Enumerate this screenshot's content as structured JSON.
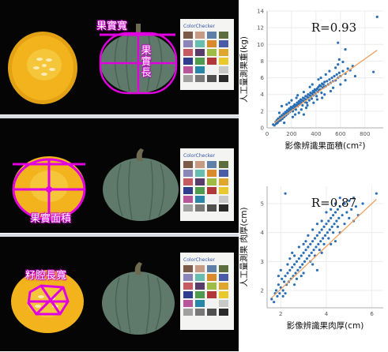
{
  "annotations": {
    "fruit_width": "果實寬",
    "fruit_length_chars": [
      "果",
      "實",
      "長"
    ],
    "fruit_area": "果實面積",
    "cavity": "籽腔長寬"
  },
  "colors": {
    "magenta": "#e000e0",
    "point": "#2a6fb4",
    "fit": "#f0a060",
    "flesh": "#f2b31c",
    "rind": "#5f7a6a"
  },
  "chart_data": [
    {
      "type": "scatter",
      "title": "",
      "ylabel": "人工量測果重(kg)",
      "xlabel": "影像辨識果面積(cm²)",
      "annotation": "R=0.93",
      "xlim": [
        0,
        950
      ],
      "ylim": [
        0,
        14
      ],
      "xticks": [
        0,
        200,
        400,
        600,
        800
      ],
      "yticks": [
        0,
        2,
        4,
        6,
        8,
        10,
        12,
        14
      ],
      "trend": [
        [
          60,
          0.6
        ],
        [
          900,
          9.3
        ]
      ],
      "points": [
        [
          50,
          0.4
        ],
        [
          60,
          0.3
        ],
        [
          70,
          0.7
        ],
        [
          75,
          0.5
        ],
        [
          80,
          0.9
        ],
        [
          85,
          0.6
        ],
        [
          90,
          1.1
        ],
        [
          95,
          0.8
        ],
        [
          100,
          1.0
        ],
        [
          105,
          1.3
        ],
        [
          110,
          0.9
        ],
        [
          115,
          1.2
        ],
        [
          120,
          1.5
        ],
        [
          125,
          1.1
        ],
        [
          130,
          1.4
        ],
        [
          135,
          1.7
        ],
        [
          140,
          1.3
        ],
        [
          145,
          1.6
        ],
        [
          150,
          1.9
        ],
        [
          155,
          1.5
        ],
        [
          160,
          1.8
        ],
        [
          165,
          2.1
        ],
        [
          170,
          1.7
        ],
        [
          175,
          2.0
        ],
        [
          180,
          2.3
        ],
        [
          185,
          1.9
        ],
        [
          190,
          2.2
        ],
        [
          195,
          2.5
        ],
        [
          200,
          2.1
        ],
        [
          205,
          2.4
        ],
        [
          210,
          2.0
        ],
        [
          215,
          2.6
        ],
        [
          220,
          2.3
        ],
        [
          225,
          2.8
        ],
        [
          230,
          2.5
        ],
        [
          235,
          2.2
        ],
        [
          240,
          2.7
        ],
        [
          245,
          3.0
        ],
        [
          250,
          2.6
        ],
        [
          255,
          2.9
        ],
        [
          260,
          3.2
        ],
        [
          265,
          2.8
        ],
        [
          270,
          3.1
        ],
        [
          275,
          3.4
        ],
        [
          280,
          3.0
        ],
        [
          285,
          3.3
        ],
        [
          290,
          2.7
        ],
        [
          295,
          3.6
        ],
        [
          300,
          3.2
        ],
        [
          305,
          3.5
        ],
        [
          310,
          3.1
        ],
        [
          315,
          3.8
        ],
        [
          320,
          3.4
        ],
        [
          325,
          3.0
        ],
        [
          330,
          3.7
        ],
        [
          335,
          4.0
        ],
        [
          340,
          3.6
        ],
        [
          345,
          3.3
        ],
        [
          350,
          3.9
        ],
        [
          355,
          4.2
        ],
        [
          360,
          3.8
        ],
        [
          365,
          3.5
        ],
        [
          370,
          4.1
        ],
        [
          375,
          4.4
        ],
        [
          380,
          3.9
        ],
        [
          385,
          4.3
        ],
        [
          390,
          4.6
        ],
        [
          395,
          4.1
        ],
        [
          400,
          4.5
        ],
        [
          405,
          3.8
        ],
        [
          410,
          4.7
        ],
        [
          415,
          4.3
        ],
        [
          420,
          4.9
        ],
        [
          425,
          4.5
        ],
        [
          430,
          5.1
        ],
        [
          435,
          4.6
        ],
        [
          440,
          5.0
        ],
        [
          445,
          4.2
        ],
        [
          450,
          5.3
        ],
        [
          455,
          4.8
        ],
        [
          460,
          5.2
        ],
        [
          465,
          4.9
        ],
        [
          470,
          5.5
        ],
        [
          480,
          5.0
        ],
        [
          490,
          5.6
        ],
        [
          500,
          5.2
        ],
        [
          510,
          5.8
        ],
        [
          520,
          5.4
        ],
        [
          530,
          6.0
        ],
        [
          540,
          5.6
        ],
        [
          550,
          6.2
        ],
        [
          560,
          5.7
        ],
        [
          570,
          6.4
        ],
        [
          580,
          6.0
        ],
        [
          590,
          6.6
        ],
        [
          600,
          6.2
        ],
        [
          620,
          6.8
        ],
        [
          640,
          6.5
        ],
        [
          660,
          7.1
        ],
        [
          700,
          7.4
        ],
        [
          120,
          2.6
        ],
        [
          140,
          0.6
        ],
        [
          180,
          3.0
        ],
        [
          210,
          1.3
        ],
        [
          240,
          3.6
        ],
        [
          260,
          1.8
        ],
        [
          300,
          4.3
        ],
        [
          320,
          2.4
        ],
        [
          350,
          4.9
        ],
        [
          380,
          3.0
        ],
        [
          420,
          5.8
        ],
        [
          450,
          3.6
        ],
        [
          480,
          6.4
        ],
        [
          520,
          4.4
        ],
        [
          560,
          7.2
        ],
        [
          600,
          5.2
        ],
        [
          100,
          1.8
        ],
        [
          160,
          2.8
        ],
        [
          230,
          1.6
        ],
        [
          280,
          2.2
        ],
        [
          330,
          2.7
        ],
        [
          370,
          5.2
        ],
        [
          410,
          3.4
        ],
        [
          440,
          6.0
        ],
        [
          470,
          4.0
        ],
        [
          510,
          6.8
        ],
        [
          540,
          4.8
        ],
        [
          580,
          7.6
        ],
        [
          200,
          3.3
        ],
        [
          250,
          3.9
        ],
        [
          620,
          7.9
        ],
        [
          640,
          5.7
        ],
        [
          680,
          6.9
        ],
        [
          720,
          6.2
        ],
        [
          870,
          6.7
        ],
        [
          900,
          13.3
        ],
        [
          580,
          10.2
        ],
        [
          640,
          9.4
        ],
        [
          590,
          8.2
        ],
        [
          300,
          1.6
        ]
      ]
    },
    {
      "type": "scatter",
      "title": "",
      "ylabel": "人工量測果 肉厚(cm)",
      "xlabel": "影像辨識果肉厚(cm)",
      "annotation": "R=0.87",
      "xlim": [
        1.4,
        6.5
      ],
      "ylim": [
        1.4,
        5.6
      ],
      "xticks": [
        2,
        4,
        6
      ],
      "yticks": [
        2,
        3,
        4,
        5
      ],
      "trend": [
        [
          1.6,
          1.75
        ],
        [
          6.2,
          5.15
        ]
      ],
      "points": [
        [
          1.6,
          1.7
        ],
        [
          1.7,
          1.6
        ],
        [
          1.75,
          1.9
        ],
        [
          1.8,
          2.0
        ],
        [
          1.85,
          1.8
        ],
        [
          1.9,
          2.2
        ],
        [
          1.95,
          1.9
        ],
        [
          2.0,
          2.1
        ],
        [
          2.05,
          2.4
        ],
        [
          2.1,
          2.0
        ],
        [
          2.15,
          2.3
        ],
        [
          2.2,
          2.5
        ],
        [
          2.25,
          2.2
        ],
        [
          2.3,
          2.6
        ],
        [
          2.35,
          2.3
        ],
        [
          2.4,
          2.7
        ],
        [
          2.45,
          2.4
        ],
        [
          2.5,
          2.8
        ],
        [
          2.55,
          2.5
        ],
        [
          2.6,
          2.9
        ],
        [
          2.65,
          2.6
        ],
        [
          2.7,
          3.0
        ],
        [
          2.75,
          2.7
        ],
        [
          2.8,
          3.1
        ],
        [
          2.85,
          2.8
        ],
        [
          2.9,
          3.2
        ],
        [
          2.95,
          2.9
        ],
        [
          3.0,
          3.3
        ],
        [
          3.05,
          3.0
        ],
        [
          3.1,
          3.4
        ],
        [
          3.15,
          3.1
        ],
        [
          3.2,
          3.5
        ],
        [
          3.25,
          3.2
        ],
        [
          3.3,
          3.6
        ],
        [
          3.35,
          3.3
        ],
        [
          3.4,
          3.7
        ],
        [
          3.45,
          3.4
        ],
        [
          3.5,
          3.8
        ],
        [
          3.55,
          3.5
        ],
        [
          3.6,
          3.9
        ],
        [
          3.65,
          3.6
        ],
        [
          3.7,
          4.0
        ],
        [
          3.75,
          3.7
        ],
        [
          3.8,
          4.1
        ],
        [
          3.85,
          3.8
        ],
        [
          3.9,
          4.2
        ],
        [
          3.95,
          3.9
        ],
        [
          4.0,
          4.3
        ],
        [
          4.05,
          4.0
        ],
        [
          4.1,
          4.4
        ],
        [
          4.15,
          4.1
        ],
        [
          4.2,
          4.5
        ],
        [
          4.25,
          4.2
        ],
        [
          4.3,
          4.6
        ],
        [
          4.35,
          4.3
        ],
        [
          4.4,
          4.7
        ],
        [
          4.45,
          4.4
        ],
        [
          4.5,
          4.8
        ],
        [
          4.55,
          4.5
        ],
        [
          4.6,
          4.9
        ],
        [
          4.7,
          4.6
        ],
        [
          4.8,
          5.0
        ],
        [
          4.9,
          4.7
        ],
        [
          5.0,
          5.1
        ],
        [
          5.1,
          4.8
        ],
        [
          5.2,
          5.2
        ],
        [
          5.3,
          4.9
        ],
        [
          5.4,
          4.6
        ],
        [
          5.6,
          5.0
        ],
        [
          6.2,
          5.35
        ],
        [
          2.0,
          2.7
        ],
        [
          2.2,
          1.9
        ],
        [
          2.4,
          3.1
        ],
        [
          2.6,
          2.2
        ],
        [
          2.8,
          3.5
        ],
        [
          3.0,
          2.6
        ],
        [
          3.2,
          3.9
        ],
        [
          3.4,
          2.9
        ],
        [
          3.6,
          4.3
        ],
        [
          3.8,
          3.3
        ],
        [
          4.0,
          4.7
        ],
        [
          4.2,
          3.6
        ],
        [
          4.4,
          5.0
        ],
        [
          4.6,
          4.0
        ],
        [
          4.8,
          4.3
        ],
        [
          5.0,
          4.5
        ],
        [
          2.3,
          2.9
        ],
        [
          2.7,
          2.4
        ],
        [
          3.1,
          3.7
        ],
        [
          3.5,
          3.2
        ],
        [
          3.9,
          3.6
        ],
        [
          4.3,
          4.0
        ],
        [
          2.5,
          3.3
        ],
        [
          2.9,
          2.5
        ],
        [
          3.3,
          3.0
        ],
        [
          3.7,
          3.4
        ],
        [
          4.1,
          3.8
        ],
        [
          4.5,
          4.2
        ],
        [
          1.9,
          2.5
        ],
        [
          2.1,
          1.8
        ],
        [
          2.6,
          3.2
        ],
        [
          3.0,
          3.6
        ],
        [
          3.4,
          4.1
        ],
        [
          3.8,
          4.4
        ],
        [
          4.2,
          4.8
        ],
        [
          4.6,
          5.2
        ],
        [
          2.2,
          5.35
        ],
        [
          3.6,
          2.7
        ],
        [
          4.4,
          3.7
        ],
        [
          5.2,
          4.4
        ]
      ]
    }
  ]
}
